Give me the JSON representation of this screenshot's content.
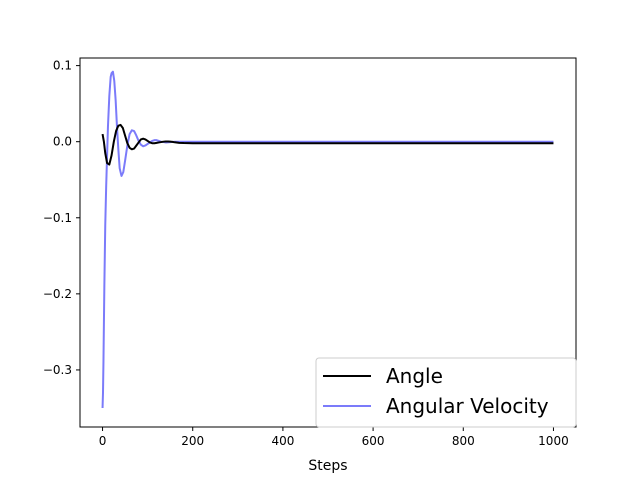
{
  "chart_data": {
    "type": "line",
    "title": "",
    "xlabel": "Steps",
    "ylabel": "",
    "xlim": [
      -50,
      1050
    ],
    "ylim": [
      -0.375,
      0.11
    ],
    "xticks": [
      0,
      200,
      400,
      600,
      800,
      1000
    ],
    "xtick_labels": [
      "0",
      "200",
      "400",
      "600",
      "800",
      "1000"
    ],
    "yticks": [
      0.1,
      0.0,
      -0.1,
      -0.2,
      -0.3
    ],
    "ytick_labels": [
      "0.1",
      "0.0",
      "−0.1",
      "−0.2",
      "−0.3"
    ],
    "grid": false,
    "legend_position": "lower-right",
    "series": [
      {
        "name": "Angle",
        "color": "#000000",
        "x": [
          0,
          3,
          6,
          10,
          15,
          20,
          25,
          30,
          35,
          40,
          45,
          50,
          55,
          60,
          65,
          70,
          75,
          80,
          85,
          90,
          95,
          100,
          105,
          110,
          115,
          120,
          125,
          130,
          135,
          140,
          145,
          150,
          155,
          160,
          170,
          180,
          190,
          200,
          220,
          250,
          300,
          400,
          500,
          600,
          700,
          800,
          900,
          1000
        ],
        "y": [
          0.01,
          0.0,
          -0.015,
          -0.028,
          -0.03,
          -0.018,
          0.0,
          0.014,
          0.021,
          0.022,
          0.018,
          0.008,
          -0.002,
          -0.008,
          -0.01,
          -0.009,
          -0.005,
          -0.001,
          0.003,
          0.004,
          0.003,
          0.001,
          -0.001,
          -0.002,
          -0.002,
          -0.0015,
          -0.001,
          -0.0005,
          0.0,
          0.0003,
          0.0003,
          0.0001,
          -0.0003,
          -0.0008,
          -0.0015,
          -0.0018,
          -0.0019,
          -0.002,
          -0.002,
          -0.002,
          -0.002,
          -0.002,
          -0.002,
          -0.002,
          -0.002,
          -0.002,
          -0.002,
          -0.002
        ]
      },
      {
        "name": "Angular Velocity",
        "color": "#7b7bfa",
        "x": [
          0,
          1,
          2,
          3,
          4,
          5,
          6,
          8,
          10,
          12,
          15,
          18,
          20,
          23,
          26,
          29,
          32,
          35,
          38,
          42,
          46,
          50,
          55,
          60,
          65,
          70,
          75,
          80,
          85,
          90,
          95,
          100,
          105,
          110,
          115,
          120,
          125,
          130,
          140,
          150,
          160,
          170,
          180,
          200,
          240,
          300,
          400,
          500,
          600,
          700,
          800,
          900,
          1000
        ],
        "y": [
          -0.35,
          -0.33,
          -0.29,
          -0.24,
          -0.19,
          -0.15,
          -0.11,
          -0.06,
          -0.02,
          0.02,
          0.06,
          0.085,
          0.09,
          0.092,
          0.08,
          0.055,
          0.02,
          -0.01,
          -0.035,
          -0.045,
          -0.04,
          -0.025,
          -0.005,
          0.01,
          0.015,
          0.014,
          0.008,
          0.001,
          -0.004,
          -0.006,
          -0.005,
          -0.003,
          -0.001,
          0.001,
          0.002,
          0.002,
          0.001,
          0.0,
          -0.001,
          -0.0005,
          0.0,
          0.0,
          0.0,
          0.0,
          0.0,
          0.0,
          0.0,
          0.0,
          0.0,
          0.0,
          0.0,
          0.0,
          0.0
        ]
      }
    ]
  }
}
